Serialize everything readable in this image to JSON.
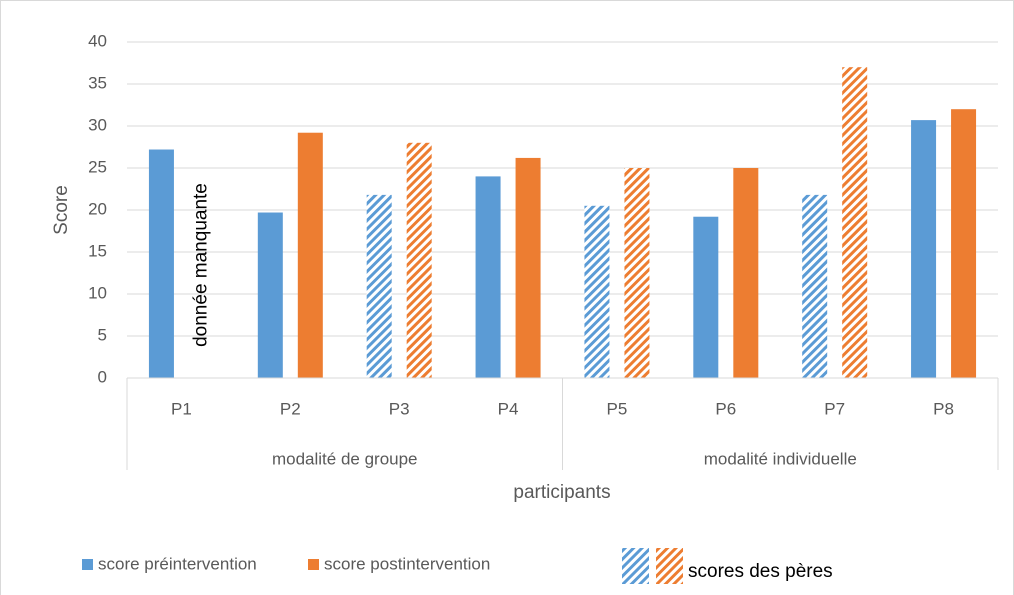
{
  "chart_data": {
    "type": "bar",
    "y_label": "Score",
    "x_label": "participants",
    "categories": [
      "P1",
      "P2",
      "P3",
      "P4",
      "P5",
      "P6",
      "P7",
      "P8"
    ],
    "groups": [
      {
        "name": "modalité de groupe",
        "size": 4
      },
      {
        "name": "modalité individuelle",
        "size": 4
      }
    ],
    "series": [
      {
        "name": "score préintervention",
        "color": "#5b9bd5",
        "values": [
          27.2,
          19.7,
          21.8,
          24,
          20.5,
          19.2,
          21.8,
          30.7
        ]
      },
      {
        "name": "score postintervention",
        "color": "#ed7d31",
        "values": [
          null,
          29.2,
          28,
          26.2,
          25,
          25,
          37,
          32
        ]
      }
    ],
    "hatched_categories": [
      2,
      4,
      6
    ],
    "hatched_legend": "scores des pères",
    "annotation": {
      "text": "donnée manquante",
      "category": 0,
      "series": 1
    },
    "ylim": [
      0,
      40
    ],
    "yticks": [
      0,
      5,
      10,
      15,
      20,
      25,
      30,
      35,
      40
    ],
    "grid": true
  }
}
